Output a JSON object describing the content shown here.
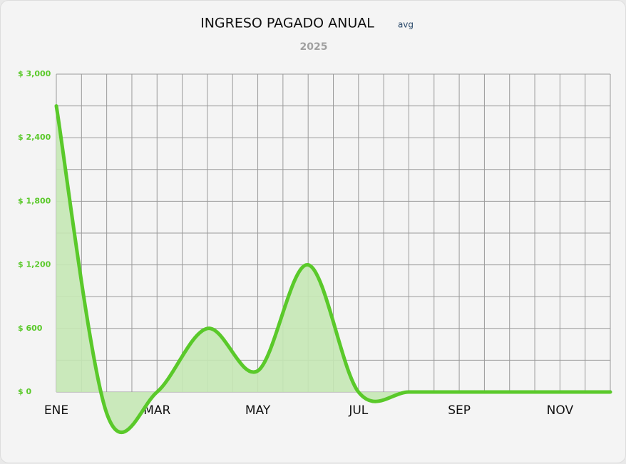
{
  "chart_data": {
    "type": "area",
    "title": "INGRESO PAGADO ANUAL",
    "title_note": "avg",
    "subtitle": "2025",
    "categories": [
      "ENE",
      null,
      "MAR",
      null,
      "MAY",
      null,
      "JUL",
      null,
      "SEP",
      null,
      "NOV",
      null
    ],
    "series": [
      {
        "color": "#5ac92a",
        "fill": "#c5e8b5",
        "values": [
          2700,
          -200,
          0,
          600,
          200,
          1200,
          0,
          0,
          0,
          0,
          0,
          0
        ]
      }
    ],
    "ylim": [
      0,
      3000
    ],
    "yticks": [
      {
        "value": 0,
        "label": "$ 0"
      },
      {
        "value": 600,
        "label": "$ 600"
      },
      {
        "value": 1200,
        "label": "$ 1,200"
      },
      {
        "value": 1800,
        "label": "$ 1,800"
      },
      {
        "value": 2400,
        "label": "$ 2,400"
      },
      {
        "value": 3000,
        "label": "$ 3,000"
      }
    ],
    "tick_color": "#5ac92a",
    "grid": true
  }
}
